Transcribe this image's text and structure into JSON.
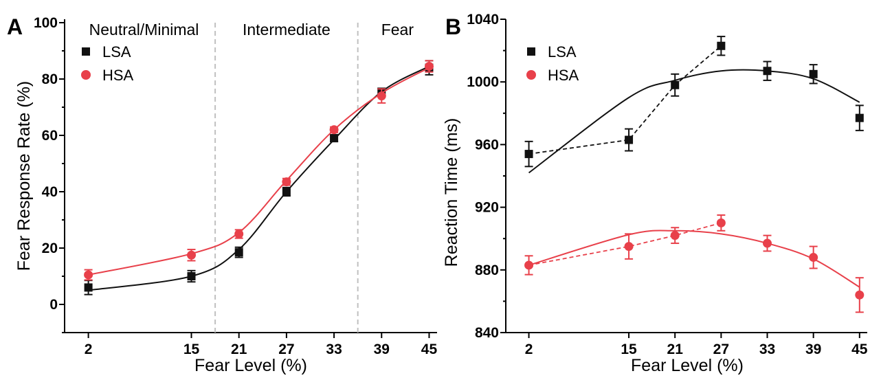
{
  "colors": {
    "LSA": "#111111",
    "HSA": "#e8404a",
    "divider": "#c0c0c0"
  },
  "chart_data": [
    {
      "panel": "A",
      "type": "scatter",
      "xlabel": "Fear Level (%)",
      "ylabel": "Fear Response Rate (%)",
      "xlim": [
        -1,
        46
      ],
      "ylim": [
        -10,
        100
      ],
      "x_ticks": [
        2,
        15,
        21,
        27,
        33,
        39,
        45
      ],
      "y_ticks": [
        0,
        20,
        40,
        60,
        80,
        100
      ],
      "regions": [
        "Neutral/Minimal",
        "Intermediate",
        "Fear"
      ],
      "region_boundaries": [
        18,
        36
      ],
      "legend": {
        "position": "top-left"
      },
      "fit": "sigmoid",
      "series": [
        {
          "name": "LSA",
          "marker": "square",
          "x": [
            2,
            15,
            21,
            27,
            33,
            39,
            45
          ],
          "y": [
            6,
            10,
            18.5,
            40,
            59,
            75.5,
            84
          ],
          "err": [
            2.5,
            2,
            1.8,
            1.5,
            1.2,
            1.2,
            2.5
          ],
          "fit_y": [
            5,
            10,
            19.5,
            40,
            58.5,
            75.5,
            84.5
          ]
        },
        {
          "name": "HSA",
          "marker": "circle",
          "x": [
            2,
            15,
            21,
            27,
            33,
            39,
            45
          ],
          "y": [
            10.5,
            17.5,
            25,
            43.5,
            62,
            74,
            84.5
          ],
          "err": [
            1.8,
            2,
            1.5,
            1.2,
            1,
            2.5,
            2
          ],
          "fit_y": [
            10.5,
            18,
            25.5,
            44,
            62,
            75,
            84
          ]
        }
      ]
    },
    {
      "panel": "B",
      "type": "scatter",
      "xlabel": "Fear Level (%)",
      "ylabel": "Reaction Time (ms)",
      "xlim": [
        -1,
        46
      ],
      "ylim": [
        840,
        1040
      ],
      "x_ticks": [
        2,
        15,
        21,
        27,
        33,
        39,
        45
      ],
      "y_ticks": [
        840,
        880,
        920,
        960,
        1000,
        1040
      ],
      "legend": {
        "position": "top-left"
      },
      "fit": "quadratic",
      "series": [
        {
          "name": "LSA",
          "marker": "square",
          "x": [
            2,
            15,
            21,
            27,
            33,
            39,
            45
          ],
          "y": [
            954,
            963,
            998,
            1023,
            1007,
            1005,
            977
          ],
          "err": [
            8,
            7,
            7,
            6,
            6,
            6,
            8
          ],
          "fit_y": [
            942,
            990,
            1001,
            1007,
            1007,
            1002,
            987
          ]
        },
        {
          "name": "HSA",
          "marker": "circle",
          "x": [
            2,
            15,
            21,
            27,
            33,
            39,
            45
          ],
          "y": [
            883,
            895,
            902,
            910,
            897,
            888,
            864
          ],
          "err": [
            6,
            8,
            5,
            5,
            5,
            7,
            11
          ],
          "fit_y": [
            883,
            902.5,
            905,
            903,
            897,
            887,
            869
          ]
        }
      ]
    }
  ]
}
